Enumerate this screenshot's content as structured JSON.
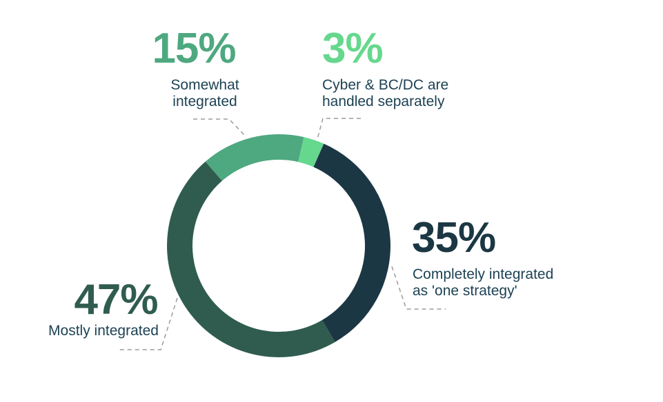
{
  "page": {
    "background": "#ffffff",
    "label_text_color": "#1d4254",
    "leader_line_color": "#9b9b9b"
  },
  "chart_data": {
    "type": "pie",
    "variant": "donut",
    "title": "",
    "segments": [
      {
        "id": "separately",
        "label": "Cyber & BC/DC are handled separately",
        "value": 3,
        "display": "3%",
        "color": "#66d88d"
      },
      {
        "id": "completely",
        "label": "Completely integrated as 'one strategy'",
        "value": 35,
        "display": "35%",
        "color": "#1c3744"
      },
      {
        "id": "mostly",
        "label": "Mostly integrated",
        "value": 47,
        "display": "47%",
        "color": "#305c50"
      },
      {
        "id": "somewhat",
        "label": "Somewhat integrated",
        "value": 15,
        "display": "15%",
        "color": "#4ea880"
      }
    ],
    "layout": {
      "start_angle_deg": 13,
      "clockwise": true,
      "center": [
        404,
        357
      ],
      "outer_radius": 162,
      "inner_radius": 125,
      "legend": "callouts-with-dashed-leader-lines",
      "grid": false
    }
  },
  "callouts": {
    "somewhat": {
      "pct": "15%",
      "line1": "Somewhat",
      "line2": "integrated",
      "color": "#4ea880"
    },
    "separately": {
      "pct": "3%",
      "line1": "Cyber & BC/DC are",
      "line2": "handled separately",
      "color": "#66d88d"
    },
    "completely": {
      "pct": "35%",
      "line1": "Completely integrated",
      "line2": "as 'one strategy'",
      "color": "#1c3744"
    },
    "mostly": {
      "pct": "47%",
      "line1": "Mostly integrated",
      "color": "#305c50"
    }
  }
}
